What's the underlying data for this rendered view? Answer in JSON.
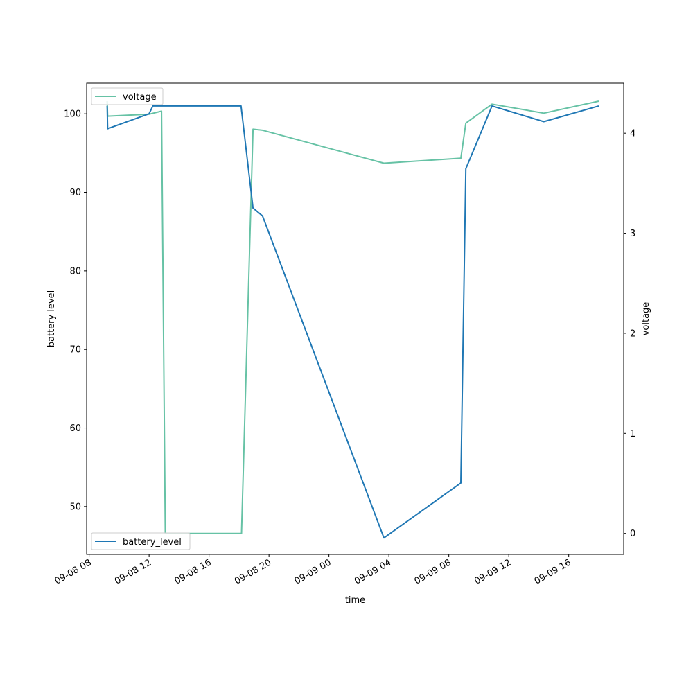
{
  "chart_data": {
    "type": "line",
    "xlabel": "time",
    "ylabel_left": "battery level",
    "ylabel_right": "voltage",
    "x_tick_labels": [
      "09-08 08",
      "09-08 12",
      "09-08 16",
      "09-08 20",
      "09-09 00",
      "09-09 04",
      "09-09 08",
      "09-09 12",
      "09-09 16"
    ],
    "x_ticks": [
      "2023-09-08T08:00",
      "2023-09-08T12:00",
      "2023-09-08T16:00",
      "2023-09-08T20:00",
      "2023-09-09T00:00",
      "2023-09-09T04:00",
      "2023-09-09T08:00",
      "2023-09-09T12:00",
      "2023-09-09T16:00"
    ],
    "xlim": [
      "2023-09-08T07:50",
      "2023-09-09T19:40"
    ],
    "y_left_ticks": [
      50,
      60,
      70,
      80,
      90,
      100
    ],
    "y_left_lim": [
      43.9,
      103.9
    ],
    "y_right_ticks": [
      0,
      1,
      2,
      3,
      4
    ],
    "y_right_lim": [
      -0.21,
      4.5
    ],
    "legend_left": {
      "position": "lower-left",
      "label": "battery_level"
    },
    "legend_right": {
      "position": "upper-left",
      "label": "voltage"
    },
    "series": [
      {
        "name": "battery_level",
        "axis": "left",
        "color": "#1f77b4",
        "points": [
          {
            "x": "2023-09-08T09:12",
            "y": 101
          },
          {
            "x": "2023-09-08T09:14",
            "y": 98.1
          },
          {
            "x": "2023-09-08T12:00",
            "y": 100
          },
          {
            "x": "2023-09-08T12:15",
            "y": 101
          },
          {
            "x": "2023-09-08T18:08",
            "y": 101
          },
          {
            "x": "2023-09-08T18:56",
            "y": 88
          },
          {
            "x": "2023-09-08T19:34",
            "y": 87
          },
          {
            "x": "2023-09-09T03:40",
            "y": 46
          },
          {
            "x": "2023-09-09T08:48",
            "y": 53
          },
          {
            "x": "2023-09-09T09:08",
            "y": 93
          },
          {
            "x": "2023-09-09T10:53",
            "y": 101
          },
          {
            "x": "2023-09-09T14:20",
            "y": 99
          },
          {
            "x": "2023-09-09T18:00",
            "y": 101
          }
        ]
      },
      {
        "name": "voltage",
        "axis": "right",
        "color": "#66c2a5",
        "points": [
          {
            "x": "2023-09-08T09:12",
            "y": 4.32
          },
          {
            "x": "2023-09-08T09:14",
            "y": 4.17
          },
          {
            "x": "2023-09-08T12:00",
            "y": 4.19
          },
          {
            "x": "2023-09-08T12:50",
            "y": 4.22
          },
          {
            "x": "2023-09-08T13:05",
            "y": 0.0
          },
          {
            "x": "2023-09-08T18:10",
            "y": 0.0
          },
          {
            "x": "2023-09-08T18:56",
            "y": 4.04
          },
          {
            "x": "2023-09-08T19:34",
            "y": 4.03
          },
          {
            "x": "2023-09-09T03:40",
            "y": 3.7
          },
          {
            "x": "2023-09-09T08:48",
            "y": 3.75
          },
          {
            "x": "2023-09-09T09:08",
            "y": 4.1
          },
          {
            "x": "2023-09-09T10:53",
            "y": 4.29
          },
          {
            "x": "2023-09-09T14:20",
            "y": 4.2
          },
          {
            "x": "2023-09-09T18:00",
            "y": 4.32
          }
        ]
      }
    ]
  }
}
